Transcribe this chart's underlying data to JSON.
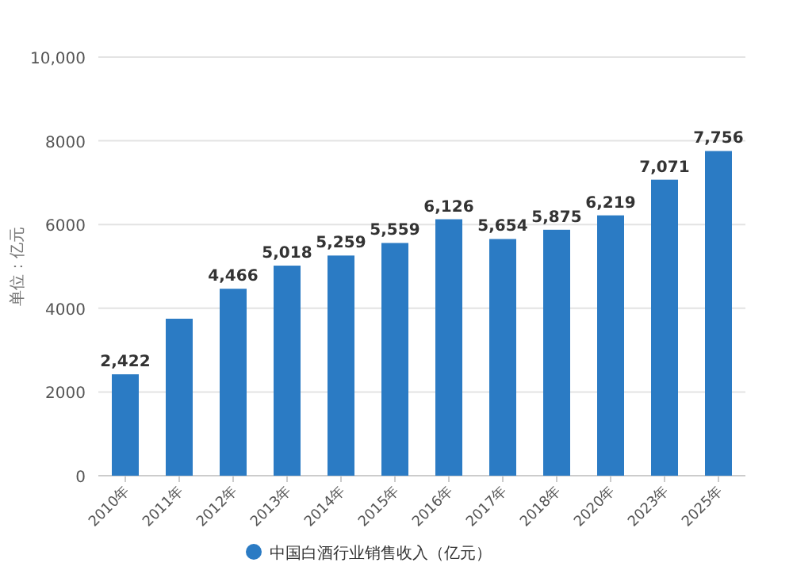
{
  "chart_data": {
    "type": "bar",
    "ylabel": "单位：亿元",
    "categories": [
      "2010年",
      "2011年",
      "2012年",
      "2013年",
      "2014年",
      "2015年",
      "2016年",
      "2017年",
      "2018年",
      "2020年",
      "2023年",
      "2025年"
    ],
    "series": [
      {
        "name": "中国白酒行业销售收入（亿元）",
        "color": "#2b7bc4",
        "values": [
          2422,
          3750,
          4466,
          5018,
          5259,
          5559,
          6126,
          5654,
          5875,
          6219,
          7071,
          7756
        ],
        "value_labels": [
          "2,422",
          null,
          "4,466",
          "5,018",
          "5,259",
          "5,559",
          "6,126",
          "5,654",
          "5,875",
          "6,219",
          "7,071",
          "7,756"
        ]
      }
    ],
    "ylim": [
      0,
      10000
    ],
    "yticks": [
      0,
      2000,
      4000,
      6000,
      8000,
      {
        "value": 10000,
        "label": "10,000"
      }
    ],
    "grid": "y",
    "legend": "bottom"
  }
}
